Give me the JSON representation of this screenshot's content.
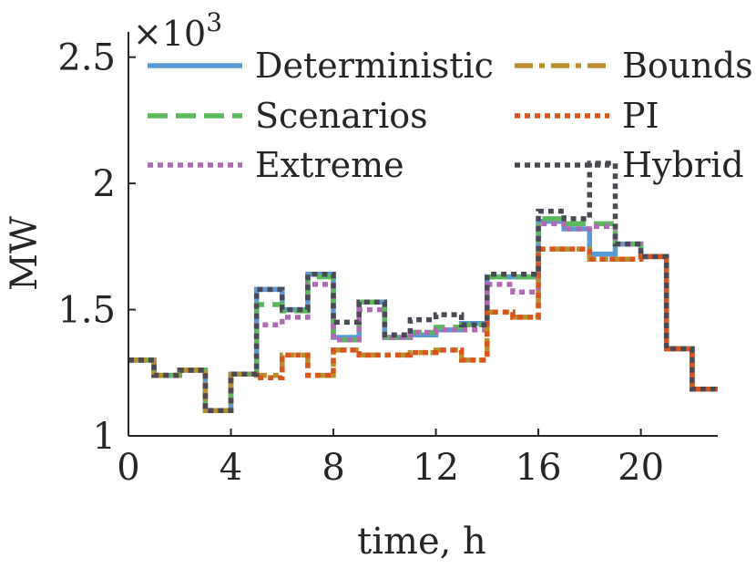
{
  "chart_data": {
    "type": "line",
    "step": true,
    "multiplier_label": "×10",
    "multiplier_exponent": "3",
    "xlabel": "time, h",
    "ylabel": "MW",
    "xlim": [
      0,
      23
    ],
    "ylim": [
      1000,
      2600
    ],
    "xticks": [
      0,
      4,
      8,
      12,
      16,
      20
    ],
    "yticks": [
      1000,
      1500,
      2000,
      2500
    ],
    "xtick_labels": [
      "0",
      "4",
      "8",
      "12",
      "16",
      "20"
    ],
    "ytick_labels": [
      "1",
      "1.5",
      "2",
      "2.5"
    ],
    "hours": [
      0,
      1,
      2,
      3,
      4,
      5,
      6,
      7,
      8,
      9,
      10,
      11,
      12,
      13,
      14,
      15,
      16,
      17,
      18,
      19,
      20,
      21,
      22,
      23
    ],
    "series": [
      {
        "name": "Deterministic",
        "color": "#5a9bd5",
        "dash": "solid",
        "values": [
          1300,
          1240,
          1260,
          1100,
          1245,
          1580,
          1500,
          1640,
          1390,
          1530,
          1390,
          1400,
          1420,
          1445,
          1630,
          1630,
          1850,
          1820,
          1720,
          1760,
          1710,
          1345,
          1185,
          1185
        ]
      },
      {
        "name": "Scenarios",
        "color": "#5cb85c",
        "dash": "dash",
        "values": [
          1300,
          1240,
          1260,
          1100,
          1245,
          1520,
          1495,
          1630,
          1380,
          1530,
          1390,
          1410,
          1430,
          1440,
          1630,
          1630,
          1860,
          1840,
          1840,
          1760,
          1710,
          1345,
          1185,
          1185
        ]
      },
      {
        "name": "Extreme",
        "color": "#b06ab3",
        "dash": "dot",
        "values": [
          1300,
          1240,
          1260,
          1100,
          1245,
          1440,
          1470,
          1600,
          1380,
          1500,
          1390,
          1410,
          1420,
          1420,
          1600,
          1570,
          1840,
          1820,
          1830,
          1760,
          1710,
          1345,
          1185,
          1185
        ]
      },
      {
        "name": "Bounds",
        "color": "#b8902b",
        "dash": "dashdot",
        "values": [
          1300,
          1240,
          1260,
          1100,
          1245,
          1240,
          1320,
          1240,
          1340,
          1320,
          1320,
          1330,
          1340,
          1300,
          1490,
          1470,
          1740,
          1740,
          1700,
          1700,
          1710,
          1345,
          1185,
          1185
        ]
      },
      {
        "name": "PI",
        "color": "#d9541e",
        "dash": "dot",
        "values": [
          1300,
          1240,
          1260,
          1100,
          1245,
          1230,
          1320,
          1240,
          1340,
          1320,
          1320,
          1330,
          1340,
          1300,
          1490,
          1470,
          1740,
          1740,
          1700,
          1700,
          1710,
          1345,
          1185,
          1185
        ]
      },
      {
        "name": "Hybrid",
        "color": "#4a4a55",
        "dash": "dot",
        "values": [
          1300,
          1240,
          1260,
          1100,
          1245,
          1580,
          1500,
          1640,
          1450,
          1530,
          1400,
          1460,
          1480,
          1440,
          1640,
          1640,
          1890,
          1860,
          2080,
          1760,
          1710,
          1345,
          1185,
          1185
        ]
      }
    ],
    "legend_placement": "top"
  }
}
